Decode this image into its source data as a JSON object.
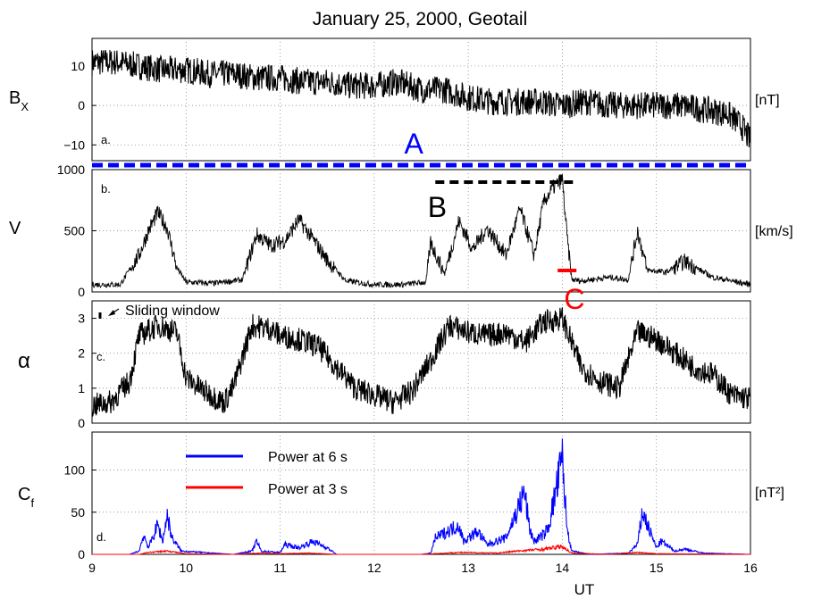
{
  "chart_data": {
    "type": "line",
    "title": "January 25, 2000, Geotail",
    "xlabel": "UT",
    "xlim": [
      9,
      16
    ],
    "xticks": [
      "9",
      "10",
      "11",
      "12",
      "13",
      "14",
      "15",
      "16"
    ],
    "grid": true,
    "panels": [
      {
        "id": "a",
        "tag": "a.",
        "ylabel_main": "B",
        "ylabel_sub": "X",
        "unit": "[nT]",
        "ylim": [
          -14,
          17
        ],
        "yticks": [
          "10",
          "0",
          "−10"
        ],
        "ytick_values": [
          10,
          0,
          -10
        ],
        "series": [
          {
            "color": "#000000",
            "x": [
              9.0,
              9.25,
              9.5,
              9.75,
              10.0,
              10.25,
              10.5,
              10.75,
              11.0,
              11.25,
              11.5,
              11.75,
              12.0,
              12.25,
              12.5,
              12.75,
              13.0,
              13.25,
              13.5,
              13.75,
              14.0,
              14.25,
              14.5,
              14.75,
              15.0,
              15.25,
              15.5,
              15.75,
              15.9,
              16.0
            ],
            "y": [
              11,
              11,
              10,
              9,
              9,
              8,
              8,
              7,
              7,
              6,
              6,
              5,
              5,
              6,
              4,
              4,
              2,
              1,
              1,
              1,
              0,
              1,
              0,
              0,
              0,
              0,
              -1,
              -2,
              -5,
              -9
            ]
          }
        ]
      },
      {
        "id": "b",
        "tag": "b.",
        "ylabel_main": "V",
        "ylabel_sub": "",
        "unit": "[km/s]",
        "ylim": [
          0,
          1000
        ],
        "yticks": [
          "1000",
          "500",
          "0"
        ],
        "ytick_values": [
          1000,
          500,
          0
        ],
        "series": [
          {
            "color": "#000000",
            "x": [
              9.0,
              9.3,
              9.5,
              9.6,
              9.7,
              9.8,
              9.9,
              10.0,
              10.3,
              10.6,
              10.75,
              10.9,
              11.05,
              11.2,
              11.35,
              11.5,
              11.7,
              12.0,
              12.3,
              12.55,
              12.6,
              12.75,
              12.9,
              13.05,
              13.2,
              13.4,
              13.55,
              13.7,
              13.8,
              13.9,
              14.0,
              14.05,
              14.1,
              14.2,
              14.5,
              14.7,
              14.8,
              14.9,
              15.1,
              15.3,
              15.6,
              16.0
            ],
            "y": [
              60,
              60,
              300,
              500,
              650,
              520,
              200,
              80,
              70,
              100,
              470,
              380,
              420,
              590,
              430,
              260,
              90,
              60,
              60,
              80,
              400,
              150,
              580,
              350,
              520,
              300,
              680,
              300,
              730,
              850,
              920,
              450,
              100,
              90,
              120,
              100,
              500,
              180,
              160,
              250,
              120,
              60
            ]
          }
        ]
      },
      {
        "id": "c",
        "tag": "c.",
        "ylabel_main": "α",
        "ylabel_sub": "",
        "unit": "",
        "ylim": [
          0,
          3.5
        ],
        "yticks": [
          "3",
          "2",
          "1",
          "0"
        ],
        "ytick_values": [
          3,
          2,
          1,
          0
        ],
        "series": [
          {
            "color": "#000000",
            "x": [
              9.0,
              9.2,
              9.4,
              9.5,
              9.7,
              9.9,
              10.0,
              10.2,
              10.4,
              10.5,
              10.7,
              10.9,
              11.0,
              11.2,
              11.4,
              11.6,
              11.8,
              12.0,
              12.2,
              12.4,
              12.6,
              12.8,
              13.0,
              13.2,
              13.4,
              13.6,
              13.8,
              14.0,
              14.2,
              14.4,
              14.6,
              14.8,
              15.0,
              15.2,
              15.4,
              15.6,
              15.8,
              16.0
            ],
            "y": [
              0.5,
              0.6,
              1.2,
              2.5,
              2.8,
              2.6,
              1.3,
              0.9,
              0.6,
              1.0,
              2.8,
              2.7,
              2.5,
              2.4,
              2.2,
              1.6,
              1.0,
              0.8,
              0.6,
              0.9,
              1.8,
              2.8,
              2.6,
              2.5,
              2.6,
              2.3,
              2.9,
              3.0,
              1.6,
              1.2,
              1.0,
              2.6,
              2.4,
              2.0,
              1.6,
              1.4,
              0.8,
              0.7
            ]
          }
        ]
      },
      {
        "id": "d",
        "tag": "d.",
        "ylabel_main": "C",
        "ylabel_sub": "f",
        "unit": "[nT²]",
        "ylim": [
          0,
          145
        ],
        "yticks": [
          "100",
          "50",
          "0"
        ],
        "ytick_values": [
          100,
          50,
          0
        ],
        "series": [
          {
            "name": "Power at 6 s",
            "color": "#0000ff",
            "x": [
              9.0,
              9.4,
              9.5,
              9.55,
              9.6,
              9.7,
              9.75,
              9.8,
              9.85,
              9.95,
              10.5,
              10.7,
              10.75,
              10.8,
              11.0,
              11.05,
              11.2,
              11.35,
              11.5,
              11.6,
              12.5,
              12.6,
              12.65,
              12.9,
              12.95,
              13.1,
              13.2,
              13.4,
              13.5,
              13.6,
              13.65,
              13.7,
              13.8,
              13.85,
              14.0,
              14.05,
              14.1,
              14.3,
              14.7,
              14.8,
              14.85,
              15.0,
              15.05,
              15.2,
              15.3,
              15.5,
              16.0
            ],
            "y": [
              0,
              0,
              5,
              30,
              10,
              45,
              20,
              60,
              25,
              5,
              0,
              5,
              20,
              5,
              3,
              15,
              10,
              20,
              10,
              0,
              0,
              2,
              25,
              45,
              20,
              35,
              15,
              25,
              60,
              95,
              40,
              20,
              30,
              40,
              145,
              40,
              5,
              0,
              2,
              15,
              65,
              10,
              20,
              5,
              8,
              2,
              0
            ]
          },
          {
            "name": "Power at 3 s",
            "color": "#ff0000",
            "x": [
              9.0,
              9.5,
              9.6,
              9.8,
              10.0,
              10.5,
              10.8,
              11.0,
              11.3,
              11.6,
              12.5,
              12.9,
              13.3,
              13.6,
              13.8,
              14.0,
              14.1,
              14.5,
              14.8,
              15.0,
              16.0
            ],
            "y": [
              0,
              0,
              3,
              5,
              1,
              0,
              2,
              1,
              2,
              0,
              0,
              3,
              2,
              6,
              8,
              12,
              2,
              0,
              3,
              1,
              0
            ]
          }
        ],
        "legend": "top-left"
      }
    ],
    "annotations": [
      {
        "text": "A",
        "color": "#0000ff",
        "x": 12.3
      },
      {
        "text": "B",
        "color": "#000000",
        "x": 12.55
      },
      {
        "text": "C",
        "color": "#ff0000",
        "x": 14.0
      },
      {
        "text": "Sliding window",
        "color": "#000000",
        "x": 9.35
      }
    ],
    "intervals": [
      {
        "label": "A",
        "color": "#0000ff",
        "x_from": 9.0,
        "x_to": 16.0
      },
      {
        "label": "B",
        "color": "#000000",
        "x_from": 12.65,
        "x_to": 14.15
      },
      {
        "label": "C",
        "color": "#ff0000",
        "x_from": 13.95,
        "x_to": 14.15
      }
    ]
  }
}
